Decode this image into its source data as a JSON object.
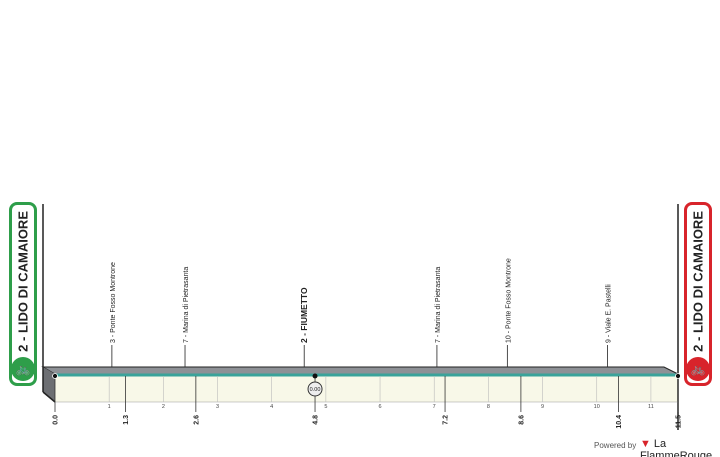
{
  "start": {
    "label": "2 - LIDO DI CAMAIORE",
    "icon": "cyclist-icon",
    "color": "#2e9e4a"
  },
  "finish": {
    "label": "2 - LIDO DI CAMAIORE",
    "icon": "cyclist-icon",
    "color": "#d8242b"
  },
  "footer": {
    "powered": "Powered by",
    "brand": "La FlammeRouge"
  },
  "chart_data": {
    "type": "area",
    "xlim": [
      0,
      11.5
    ],
    "minor_ticks": [
      "1",
      "2",
      "3",
      "4",
      "5",
      "6",
      "7",
      "8",
      "9",
      "10",
      "11"
    ],
    "major_ticks": [
      "0.0",
      "1.3",
      "2.6",
      "4.8",
      "7.2",
      "8.6",
      "10.4",
      "11.5"
    ],
    "waypoints": [
      {
        "km": 1.05,
        "label": "3 - Ponte Fosso Montrone",
        "bold": false
      },
      {
        "km": 2.4,
        "label": "7 - Marina di Pietrasanta",
        "bold": false
      },
      {
        "km": 4.6,
        "label": "2 - FIUMETTO",
        "bold": true
      },
      {
        "km": 7.05,
        "label": "7 - Marina di Pietrasanta",
        "bold": false
      },
      {
        "km": 8.35,
        "label": "10 - Ponte Fosso Montrone",
        "bold": false
      },
      {
        "km": 10.2,
        "label": "9 - Viale E. Pastelli",
        "bold": false
      }
    ],
    "checkpoint": {
      "km": 4.8,
      "label": "0.00",
      "icon": "stopwatch-icon"
    },
    "colors": {
      "road": "#8e9196",
      "line": "#3aa39a",
      "fill": "#f8f8e8"
    }
  }
}
